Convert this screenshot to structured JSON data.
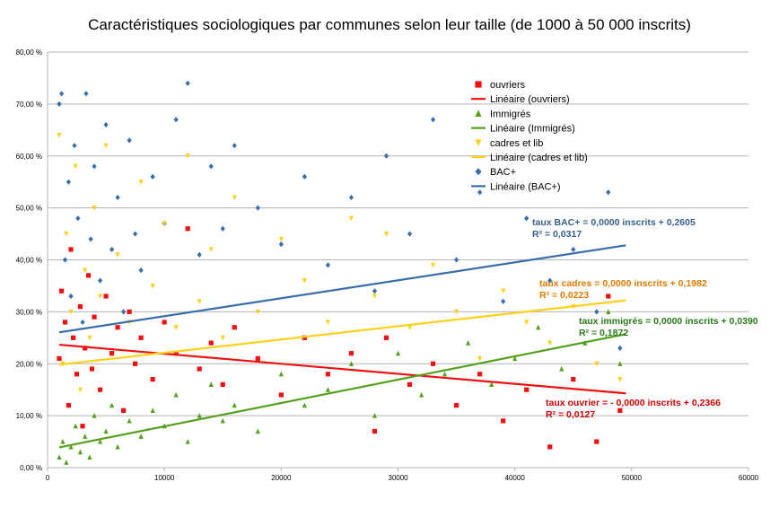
{
  "chart_data": {
    "type": "scatter",
    "title": "Caractéristiques sociologiques par communes selon leur taille  (de 1000 à 50 000 inscrits)",
    "xlim": [
      0,
      60000
    ],
    "ylim": [
      0,
      0.8
    ],
    "x_ticks": [
      "0",
      "10000",
      "20000",
      "30000",
      "40000",
      "50000",
      "60000"
    ],
    "y_ticks": [
      "0,00 %",
      "10,00 %",
      "20,00 %",
      "30,00 %",
      "40,00 %",
      "50,00 %",
      "60,00 %",
      "70,00 %",
      "80,00 %"
    ],
    "grid": "horizontal",
    "legend_position": "top-right",
    "series": [
      {
        "name": "ouvriers",
        "marker": "square",
        "color": "#ee1111",
        "points": [
          [
            1000,
            0.21
          ],
          [
            1200,
            0.34
          ],
          [
            1500,
            0.28
          ],
          [
            1800,
            0.12
          ],
          [
            2000,
            0.42
          ],
          [
            2200,
            0.25
          ],
          [
            2500,
            0.18
          ],
          [
            2800,
            0.31
          ],
          [
            3000,
            0.08
          ],
          [
            3200,
            0.23
          ],
          [
            3500,
            0.37
          ],
          [
            3800,
            0.19
          ],
          [
            4000,
            0.29
          ],
          [
            4500,
            0.15
          ],
          [
            5000,
            0.33
          ],
          [
            5500,
            0.22
          ],
          [
            6000,
            0.27
          ],
          [
            6500,
            0.11
          ],
          [
            7000,
            0.3
          ],
          [
            7500,
            0.2
          ],
          [
            8000,
            0.25
          ],
          [
            9000,
            0.17
          ],
          [
            10000,
            0.28
          ],
          [
            11000,
            0.22
          ],
          [
            12000,
            0.46
          ],
          [
            13000,
            0.19
          ],
          [
            14000,
            0.24
          ],
          [
            15000,
            0.16
          ],
          [
            16000,
            0.27
          ],
          [
            18000,
            0.21
          ],
          [
            20000,
            0.14
          ],
          [
            22000,
            0.25
          ],
          [
            24000,
            0.18
          ],
          [
            26000,
            0.22
          ],
          [
            28000,
            0.07
          ],
          [
            29000,
            0.25
          ],
          [
            31000,
            0.16
          ],
          [
            33000,
            0.2
          ],
          [
            35000,
            0.12
          ],
          [
            37000,
            0.18
          ],
          [
            39000,
            0.09
          ],
          [
            41000,
            0.15
          ],
          [
            43000,
            0.04
          ],
          [
            45000,
            0.17
          ],
          [
            47000,
            0.05
          ],
          [
            48000,
            0.33
          ],
          [
            49000,
            0.11
          ]
        ]
      },
      {
        "name": "Linéaire (ouvriers)",
        "type": "trendline",
        "color": "#ee1111",
        "x": [
          1000,
          49500
        ],
        "y": [
          0.2366,
          0.143
        ]
      },
      {
        "name": "Immigrés",
        "marker": "triangle",
        "color": "#56a01f",
        "points": [
          [
            1000,
            0.02
          ],
          [
            1300,
            0.05
          ],
          [
            1600,
            0.01
          ],
          [
            2000,
            0.04
          ],
          [
            2400,
            0.08
          ],
          [
            2800,
            0.03
          ],
          [
            3200,
            0.06
          ],
          [
            3600,
            0.02
          ],
          [
            4000,
            0.1
          ],
          [
            4500,
            0.05
          ],
          [
            5000,
            0.07
          ],
          [
            5500,
            0.12
          ],
          [
            6000,
            0.04
          ],
          [
            7000,
            0.09
          ],
          [
            8000,
            0.06
          ],
          [
            9000,
            0.11
          ],
          [
            10000,
            0.08
          ],
          [
            11000,
            0.14
          ],
          [
            12000,
            0.05
          ],
          [
            13000,
            0.1
          ],
          [
            14000,
            0.16
          ],
          [
            15000,
            0.09
          ],
          [
            16000,
            0.12
          ],
          [
            18000,
            0.07
          ],
          [
            20000,
            0.18
          ],
          [
            22000,
            0.12
          ],
          [
            24000,
            0.15
          ],
          [
            26000,
            0.2
          ],
          [
            28000,
            0.1
          ],
          [
            30000,
            0.22
          ],
          [
            32000,
            0.14
          ],
          [
            34000,
            0.18
          ],
          [
            36000,
            0.24
          ],
          [
            38000,
            0.16
          ],
          [
            40000,
            0.21
          ],
          [
            42000,
            0.27
          ],
          [
            44000,
            0.19
          ],
          [
            46000,
            0.24
          ],
          [
            48000,
            0.3
          ],
          [
            49000,
            0.2
          ]
        ]
      },
      {
        "name": "Linéaire (Immigrés)",
        "type": "trendline",
        "color": "#56a01f",
        "x": [
          1000,
          49500
        ],
        "y": [
          0.039,
          0.257
        ]
      },
      {
        "name": "cadres et lib",
        "marker": "triangle-down",
        "color": "#fcd11a",
        "points": [
          [
            1000,
            0.64
          ],
          [
            1300,
            0.2
          ],
          [
            1600,
            0.45
          ],
          [
            2000,
            0.3
          ],
          [
            2400,
            0.58
          ],
          [
            2800,
            0.15
          ],
          [
            3200,
            0.38
          ],
          [
            3600,
            0.25
          ],
          [
            4000,
            0.5
          ],
          [
            4500,
            0.33
          ],
          [
            5000,
            0.62
          ],
          [
            5500,
            0.22
          ],
          [
            6000,
            0.41
          ],
          [
            7000,
            0.28
          ],
          [
            8000,
            0.55
          ],
          [
            9000,
            0.35
          ],
          [
            10000,
            0.47
          ],
          [
            11000,
            0.27
          ],
          [
            12000,
            0.6
          ],
          [
            13000,
            0.32
          ],
          [
            14000,
            0.42
          ],
          [
            15000,
            0.25
          ],
          [
            16000,
            0.52
          ],
          [
            18000,
            0.3
          ],
          [
            20000,
            0.44
          ],
          [
            22000,
            0.36
          ],
          [
            24000,
            0.28
          ],
          [
            26000,
            0.48
          ],
          [
            28000,
            0.33
          ],
          [
            29000,
            0.45
          ],
          [
            31000,
            0.27
          ],
          [
            33000,
            0.39
          ],
          [
            35000,
            0.3
          ],
          [
            37000,
            0.21
          ],
          [
            39000,
            0.34
          ],
          [
            41000,
            0.28
          ],
          [
            43000,
            0.24
          ],
          [
            45000,
            0.31
          ],
          [
            47000,
            0.2
          ],
          [
            49000,
            0.17
          ]
        ]
      },
      {
        "name": "Linéaire (cadres et lib)",
        "type": "trendline",
        "color": "#fcd11a",
        "x": [
          1000,
          49500
        ],
        "y": [
          0.1982,
          0.322
        ]
      },
      {
        "name": "BAC+",
        "marker": "diamond",
        "color": "#3a6ea8",
        "points": [
          [
            1000,
            0.7
          ],
          [
            1200,
            0.72
          ],
          [
            1500,
            0.4
          ],
          [
            1800,
            0.55
          ],
          [
            2000,
            0.33
          ],
          [
            2300,
            0.62
          ],
          [
            2600,
            0.48
          ],
          [
            3000,
            0.28
          ],
          [
            3300,
            0.72
          ],
          [
            3700,
            0.44
          ],
          [
            4000,
            0.58
          ],
          [
            4500,
            0.36
          ],
          [
            5000,
            0.66
          ],
          [
            5500,
            0.42
          ],
          [
            6000,
            0.52
          ],
          [
            6500,
            0.3
          ],
          [
            7000,
            0.63
          ],
          [
            7500,
            0.45
          ],
          [
            8000,
            0.38
          ],
          [
            9000,
            0.56
          ],
          [
            10000,
            0.47
          ],
          [
            11000,
            0.67
          ],
          [
            12000,
            0.74
          ],
          [
            13000,
            0.41
          ],
          [
            14000,
            0.58
          ],
          [
            15000,
            0.46
          ],
          [
            16000,
            0.62
          ],
          [
            18000,
            0.5
          ],
          [
            20000,
            0.43
          ],
          [
            22000,
            0.56
          ],
          [
            24000,
            0.39
          ],
          [
            26000,
            0.52
          ],
          [
            28000,
            0.34
          ],
          [
            29000,
            0.6
          ],
          [
            31000,
            0.45
          ],
          [
            33000,
            0.67
          ],
          [
            35000,
            0.4
          ],
          [
            37000,
            0.53
          ],
          [
            39000,
            0.32
          ],
          [
            41000,
            0.48
          ],
          [
            43000,
            0.36
          ],
          [
            45000,
            0.42
          ],
          [
            47000,
            0.3
          ],
          [
            48000,
            0.53
          ],
          [
            49000,
            0.23
          ]
        ]
      },
      {
        "name": "Linéaire (BAC+)",
        "type": "trendline",
        "color": "#3a6ea8",
        "x": [
          1000,
          49500
        ],
        "y": [
          0.2605,
          0.428
        ]
      }
    ],
    "annotations": [
      {
        "line1": "taux BAC+ = 0,0000 inscrits + 0,2605",
        "line2": "R² = 0,0317",
        "color": "#3a5f8a"
      },
      {
        "line1": "taux cadres = 0,0000 inscrits + 0,1982",
        "line2": "R² = 0,0223",
        "color": "#e07b00"
      },
      {
        "line1": "taux immigrés = 0,0000 inscrits + 0,0390",
        "line2": "R² = 0,1872",
        "color": "#2a7a1a"
      },
      {
        "line1": "taux ouvrier = - 0,0000 inscrits + 0,2366",
        "line2": "R² = 0,0127",
        "color": "#cc0000"
      }
    ]
  }
}
